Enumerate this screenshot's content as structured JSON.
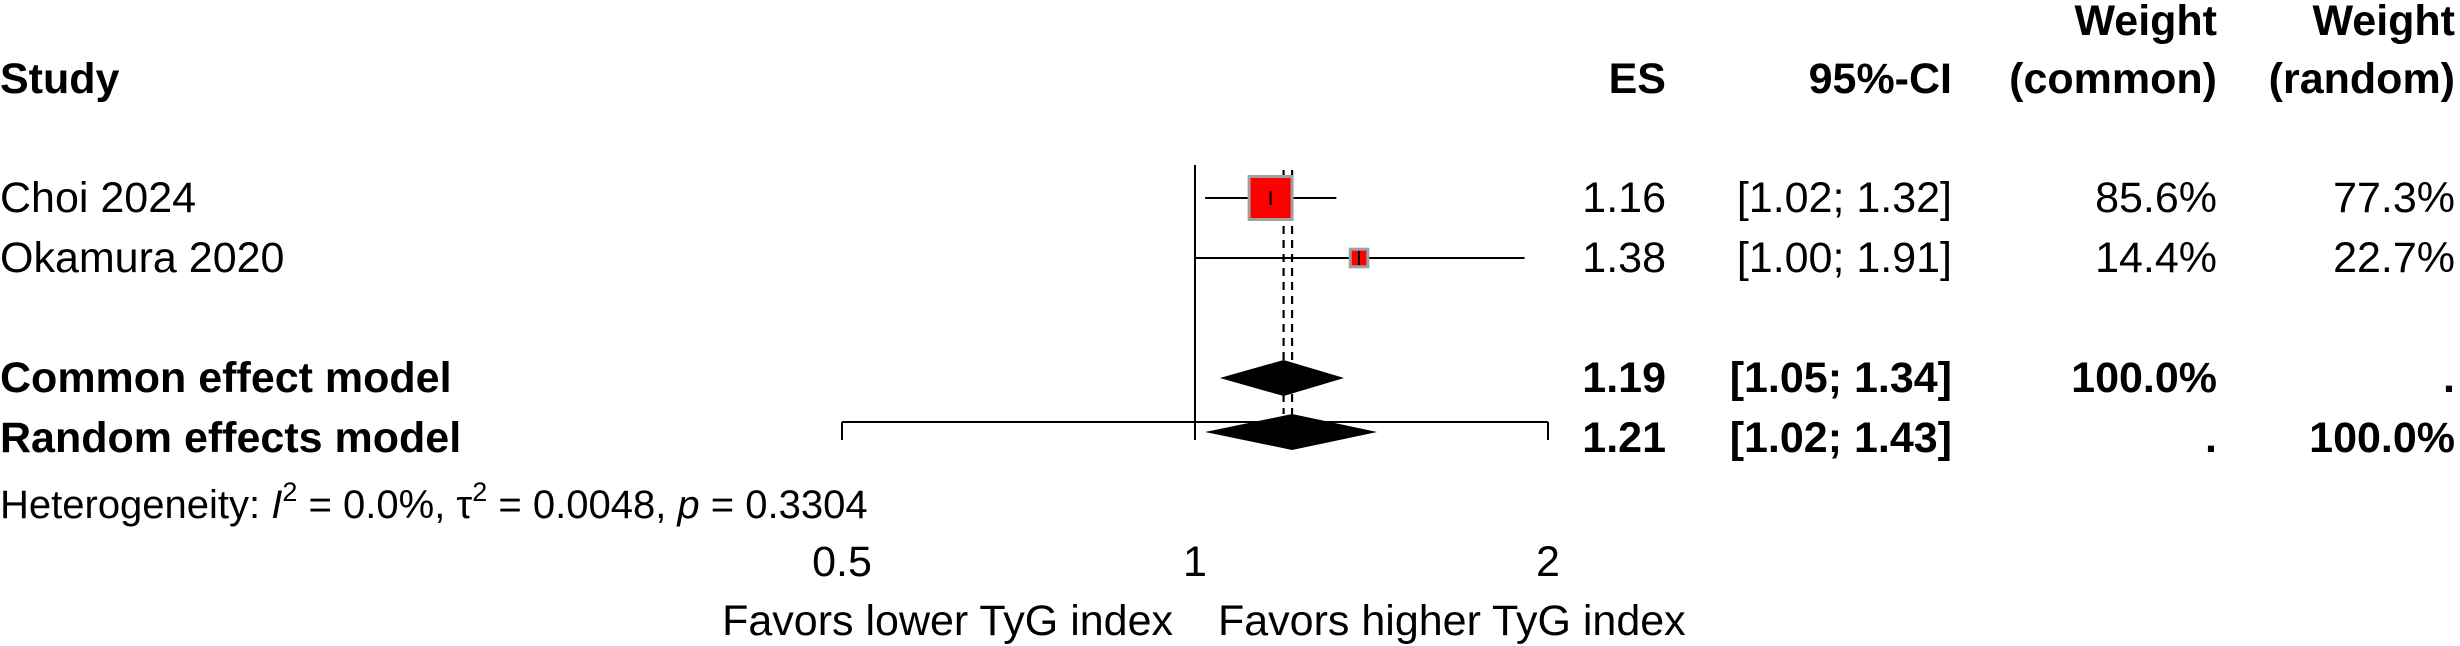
{
  "chart_data": {
    "type": "forest",
    "columns": {
      "study": "Study",
      "es": "ES",
      "ci": "95%-CI",
      "weight_common": [
        "Weight",
        "(common)"
      ],
      "weight_random": [
        "Weight",
        "(random)"
      ]
    },
    "studies": [
      {
        "name": "Choi 2024",
        "es": 1.16,
        "lower": 1.02,
        "upper": 1.32,
        "es_text": "1.16",
        "ci_text": "[1.02; 1.32]",
        "w_common": "85.6%",
        "w_random": "77.3%",
        "w_frac": 0.856
      },
      {
        "name": "Okamura 2020",
        "es": 1.38,
        "lower": 1.0,
        "upper": 1.91,
        "es_text": "1.38",
        "ci_text": "[1.00; 1.91]",
        "w_common": "14.4%",
        "w_random": "22.7%",
        "w_frac": 0.144
      }
    ],
    "pooled": [
      {
        "name": "Common effect model",
        "es": 1.19,
        "lower": 1.05,
        "upper": 1.34,
        "es_text": "1.19",
        "ci_text": "[1.05; 1.34]",
        "w_common": "100.0%",
        "w_random": "."
      },
      {
        "name": "Random effects model",
        "es": 1.21,
        "lower": 1.02,
        "upper": 1.43,
        "es_text": "1.21",
        "ci_text": "[1.02; 1.43]",
        "w_common": ".",
        "w_random": "100.0%"
      }
    ],
    "heterogeneity": {
      "prefix": "Heterogeneity: ",
      "i2_symbol": "I",
      "i2_value": " = 0.0%, ",
      "tau2_symbol": "τ",
      "tau2_value": " = 0.0048, ",
      "p_symbol": "p",
      "p_value": " = 0.3304",
      "sup": "2"
    },
    "x_axis": {
      "scale": "log",
      "range": [
        0.5,
        2
      ],
      "ticks": [
        0.5,
        1,
        2
      ],
      "tick_labels": [
        "0.5",
        "1",
        "2"
      ],
      "null_value": 1
    },
    "labels": {
      "left": "Favors lower TyG index",
      "right": "Favors higher TyG index"
    },
    "colors": {
      "square_fill": "#ff0000",
      "square_border": "#a0a0a0",
      "diamond": "#000000",
      "line": "#000000"
    }
  }
}
